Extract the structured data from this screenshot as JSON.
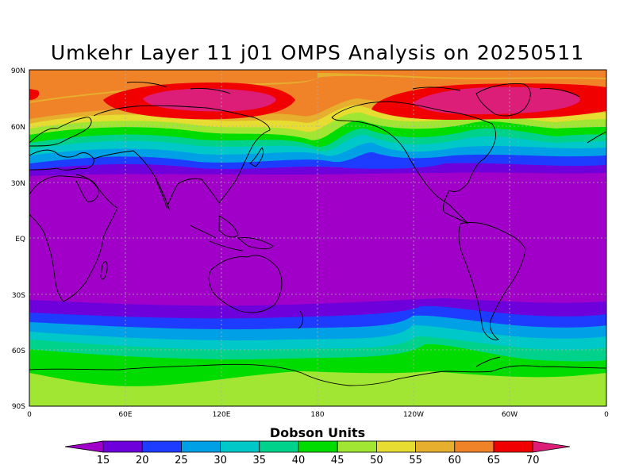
{
  "title": "Umkehr Layer 11 j01 OMPS Analysis on 20250511",
  "lat_labels": [
    "90N",
    "60N",
    "30N",
    "EQ",
    "30S",
    "60S",
    "90S"
  ],
  "lon_labels": [
    "0",
    "60E",
    "120E",
    "180",
    "120W",
    "60W",
    "0"
  ],
  "colorbar": {
    "title": "Dobson Units",
    "ticks": [
      "15",
      "20",
      "25",
      "30",
      "35",
      "40",
      "45",
      "50",
      "55",
      "60",
      "65",
      "70"
    ],
    "colors": [
      "#a000c8",
      "#6e00dc",
      "#1e3cff",
      "#00a0e6",
      "#00c8c8",
      "#00d28c",
      "#00dc00",
      "#a0e632",
      "#e6dc32",
      "#e6af2d",
      "#f08228",
      "#f00000",
      "#dc1e78"
    ]
  },
  "chart_data": {
    "type": "heatmap",
    "title": "Umkehr Layer 11 j01 OMPS Analysis on 20250511",
    "units": "Dobson Units",
    "date": "20250511",
    "x_range_deg": [
      0,
      360
    ],
    "y_range_deg": [
      -90,
      90
    ],
    "levels": [
      15,
      20,
      25,
      30,
      35,
      40,
      45,
      50,
      55,
      60,
      65,
      70
    ],
    "zonal_profile_du": [
      {
        "lat": 90,
        "value": 64
      },
      {
        "lat": 75,
        "value": 66
      },
      {
        "lat": 60,
        "value": 58
      },
      {
        "lat": 50,
        "value": 48
      },
      {
        "lat": 40,
        "value": 30
      },
      {
        "lat": 30,
        "value": 15
      },
      {
        "lat": 0,
        "value": 12
      },
      {
        "lat": -30,
        "value": 13
      },
      {
        "lat": -40,
        "value": 22
      },
      {
        "lat": -50,
        "value": 33
      },
      {
        "lat": -60,
        "value": 42
      },
      {
        "lat": -70,
        "value": 47
      },
      {
        "lat": -90,
        "value": 50
      }
    ]
  }
}
